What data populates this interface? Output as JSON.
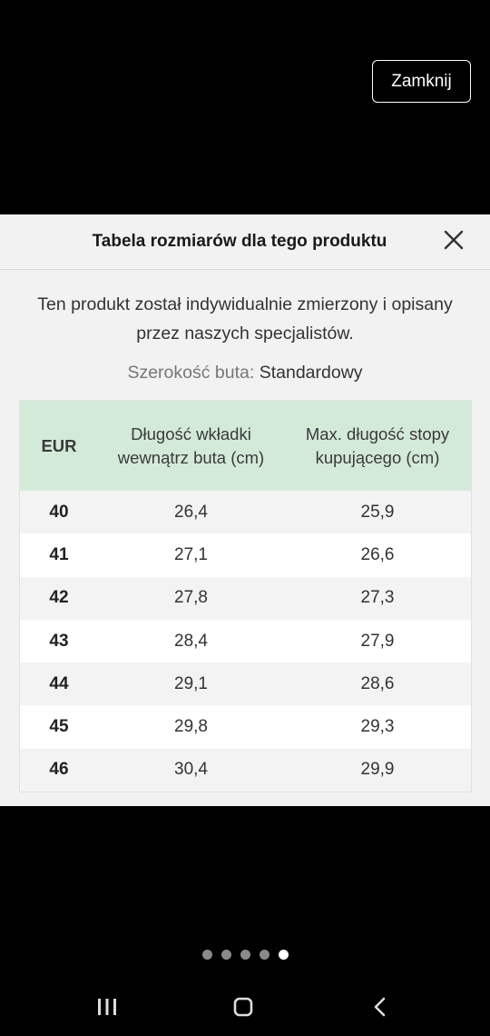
{
  "top_bar": {
    "close_label": "Zamknij"
  },
  "sheet": {
    "title": "Tabela rozmiarów dla tego produktu",
    "description": "Ten produkt został indywidualnie zmierzony i opisany przez naszych specjalistów.",
    "width_label": "Szerokość buta:",
    "width_value": "Standardowy",
    "close_icon": "close-x-icon"
  },
  "table": {
    "headers": [
      "EUR",
      "Długość wkładki wewnątrz buta (cm)",
      "Max. długość stopy kupującego (cm)"
    ],
    "rows": [
      [
        "40",
        "26,4",
        "25,9"
      ],
      [
        "41",
        "27,1",
        "26,6"
      ],
      [
        "42",
        "27,8",
        "27,3"
      ],
      [
        "43",
        "28,4",
        "27,9"
      ],
      [
        "44",
        "29,1",
        "28,6"
      ],
      [
        "45",
        "29,8",
        "29,3"
      ],
      [
        "46",
        "30,4",
        "29,9"
      ]
    ],
    "header_bg": "#d4ead9"
  },
  "pager": {
    "count": 5,
    "active_index": 4
  },
  "navbar": {
    "icons": [
      "recent-apps-icon",
      "home-icon",
      "back-icon"
    ]
  }
}
